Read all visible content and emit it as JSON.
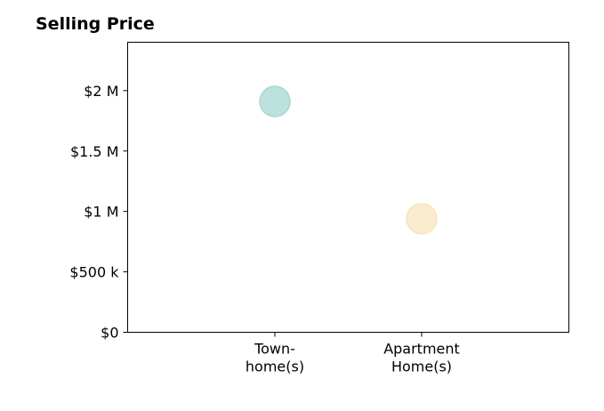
{
  "chart_data": {
    "type": "scatter",
    "title": "Selling Price",
    "xlabel": "",
    "ylabel": "",
    "categories": [
      [
        "Town-",
        "home(s)"
      ],
      [
        "Apartment",
        "Home(s)"
      ]
    ],
    "points": [
      {
        "category_index": 0,
        "value": 1910000,
        "color": "#a7d8d2"
      },
      {
        "category_index": 1,
        "value": 940000,
        "color": "#f7e5bf"
      }
    ],
    "ylim": [
      0,
      2400000
    ],
    "y_ticks": [
      {
        "value": 0,
        "label": "$0"
      },
      {
        "value": 500000,
        "label": "$500 k"
      },
      {
        "value": 1000000,
        "label": "$1 M"
      },
      {
        "value": 1500000,
        "label": "$1.5 M"
      },
      {
        "value": 2000000,
        "label": "$2 M"
      }
    ],
    "grid": false,
    "legend": "none"
  }
}
